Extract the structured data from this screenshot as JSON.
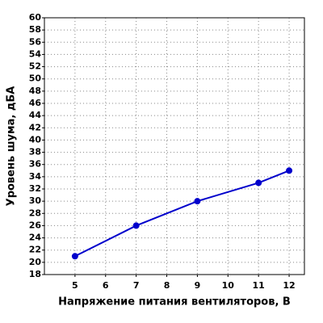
{
  "chart_data": {
    "type": "line",
    "x_label": "Напряжение питания вентиляторов, В",
    "y_label": "Уровень шума, дБА",
    "x": [
      5,
      7,
      9,
      11,
      12
    ],
    "series": [
      {
        "color": "#0000cc",
        "values": [
          21,
          26,
          30,
          33,
          35
        ]
      }
    ],
    "xlim": [
      4,
      12.5
    ],
    "xticks": [
      5,
      6,
      7,
      8,
      9,
      10,
      11,
      12
    ],
    "ylim": [
      18,
      60
    ],
    "yticks": [
      18,
      20,
      22,
      24,
      26,
      28,
      30,
      32,
      34,
      36,
      38,
      40,
      42,
      44,
      46,
      48,
      50,
      52,
      54,
      56,
      58,
      60
    ],
    "grid": true
  }
}
